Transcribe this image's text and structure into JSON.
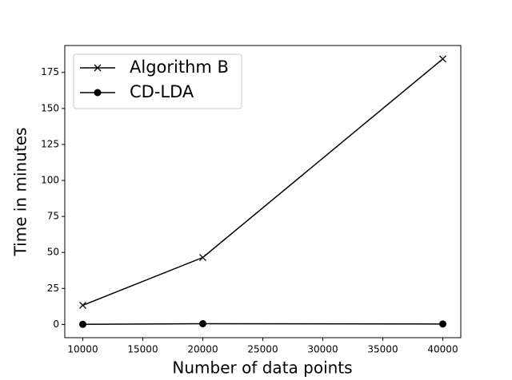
{
  "chart_data": {
    "type": "line",
    "x_label": "Number of data points",
    "y_label": "Time in minutes",
    "x": [
      10000,
      20000,
      40000
    ],
    "series": [
      {
        "name": "Algorithm B",
        "color": "#000000",
        "marker": "x",
        "values": [
          13.3,
          46.5,
          184.4
        ]
      },
      {
        "name": "CD-LDA",
        "color": "#000000",
        "marker": "o",
        "values": [
          0.1,
          0.5,
          0.3
        ]
      }
    ],
    "xlim": [
      8500,
      41500
    ],
    "xticks": [
      10000,
      15000,
      20000,
      25000,
      30000,
      35000,
      40000
    ],
    "ylim": [
      -9.2,
      193.7
    ],
    "yticks": [
      0,
      25,
      50,
      75,
      100,
      125,
      150,
      175
    ],
    "legend": "upper left"
  }
}
